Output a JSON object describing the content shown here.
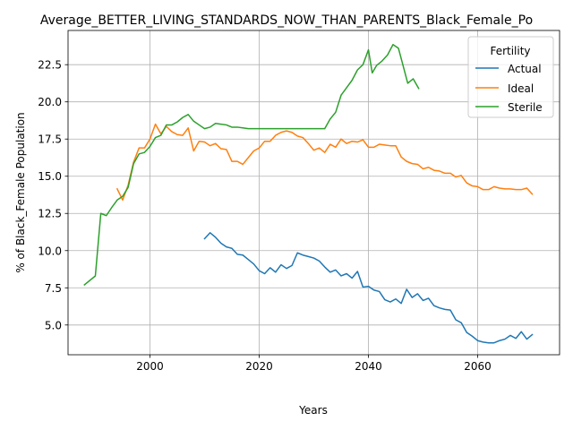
{
  "chart_data": {
    "type": "line",
    "title": "Average_BETTER_LIVING_STANDARDS_NOW_THAN_PARENTS_Black_Female_Po",
    "xlabel": "Years",
    "ylabel": "% of Black_Female Population",
    "xlim": [
      1985,
      2075
    ],
    "ylim": [
      3.0,
      24.8
    ],
    "x_ticks": [
      2000,
      2020,
      2040,
      2060
    ],
    "y_ticks": [
      5.0,
      7.5,
      10.0,
      12.5,
      15.0,
      17.5,
      20.0,
      22.5
    ],
    "grid": true,
    "legend": {
      "title": "Fertility",
      "placement": "top-right"
    },
    "series": [
      {
        "name": "Actual",
        "color": "#1f77b4",
        "points": [
          [
            2010,
            10.8
          ],
          [
            2011,
            11.2
          ],
          [
            2012,
            10.9
          ],
          [
            2013,
            10.5
          ],
          [
            2014,
            10.25
          ],
          [
            2015,
            10.15
          ],
          [
            2016,
            9.75
          ],
          [
            2017,
            9.7
          ],
          [
            2018,
            9.4
          ],
          [
            2019,
            9.1
          ],
          [
            2020,
            8.65
          ],
          [
            2021,
            8.45
          ],
          [
            2022,
            8.85
          ],
          [
            2023,
            8.55
          ],
          [
            2024,
            9.05
          ],
          [
            2025,
            8.8
          ],
          [
            2026,
            9.0
          ],
          [
            2027,
            9.85
          ],
          [
            2028,
            9.7
          ],
          [
            2029,
            9.6
          ],
          [
            2030,
            9.5
          ],
          [
            2031,
            9.3
          ],
          [
            2032,
            8.9
          ],
          [
            2033,
            8.55
          ],
          [
            2034,
            8.7
          ],
          [
            2035,
            8.3
          ],
          [
            2036,
            8.45
          ],
          [
            2037,
            8.15
          ],
          [
            2038,
            8.6
          ],
          [
            2039,
            7.55
          ],
          [
            2040,
            7.6
          ],
          [
            2041,
            7.35
          ],
          [
            2042,
            7.25
          ],
          [
            2043,
            6.7
          ],
          [
            2044,
            6.55
          ],
          [
            2045,
            6.75
          ],
          [
            2046,
            6.45
          ],
          [
            2047,
            7.4
          ],
          [
            2048,
            6.85
          ],
          [
            2049,
            7.1
          ],
          [
            2050,
            6.65
          ],
          [
            2051,
            6.8
          ],
          [
            2052,
            6.3
          ],
          [
            2053,
            6.15
          ],
          [
            2054,
            6.05
          ],
          [
            2055,
            6.0
          ],
          [
            2056,
            5.35
          ],
          [
            2057,
            5.15
          ],
          [
            2058,
            4.5
          ],
          [
            2059,
            4.25
          ],
          [
            2060,
            3.95
          ],
          [
            2061,
            3.85
          ],
          [
            2062,
            3.8
          ],
          [
            2063,
            3.8
          ],
          [
            2064,
            3.95
          ],
          [
            2065,
            4.05
          ],
          [
            2066,
            4.3
          ],
          [
            2067,
            4.1
          ],
          [
            2068,
            4.55
          ],
          [
            2069,
            4.05
          ],
          [
            2070,
            4.35
          ]
        ]
      },
      {
        "name": "Ideal",
        "color": "#ff7f0e",
        "points": [
          [
            1994,
            14.15
          ],
          [
            1995,
            13.4
          ],
          [
            1996,
            14.4
          ],
          [
            1997,
            15.95
          ],
          [
            1998,
            16.9
          ],
          [
            1999,
            16.9
          ],
          [
            2000,
            17.5
          ],
          [
            2001,
            18.5
          ],
          [
            2002,
            17.85
          ],
          [
            2003,
            18.35
          ],
          [
            2004,
            18.0
          ],
          [
            2005,
            17.8
          ],
          [
            2006,
            17.75
          ],
          [
            2007,
            18.25
          ],
          [
            2008,
            16.7
          ],
          [
            2009,
            17.35
          ],
          [
            2010,
            17.3
          ],
          [
            2011,
            17.05
          ],
          [
            2012,
            17.2
          ],
          [
            2013,
            16.85
          ],
          [
            2014,
            16.8
          ],
          [
            2015,
            16.0
          ],
          [
            2016,
            16.0
          ],
          [
            2017,
            15.8
          ],
          [
            2018,
            16.25
          ],
          [
            2019,
            16.7
          ],
          [
            2020,
            16.9
          ],
          [
            2021,
            17.35
          ],
          [
            2022,
            17.35
          ],
          [
            2023,
            17.75
          ],
          [
            2024,
            17.95
          ],
          [
            2025,
            18.05
          ],
          [
            2026,
            17.95
          ],
          [
            2027,
            17.7
          ],
          [
            2028,
            17.6
          ],
          [
            2029,
            17.2
          ],
          [
            2030,
            16.75
          ],
          [
            2031,
            16.9
          ],
          [
            2032,
            16.6
          ],
          [
            2033,
            17.15
          ],
          [
            2034,
            16.95
          ],
          [
            2035,
            17.5
          ],
          [
            2036,
            17.2
          ],
          [
            2037,
            17.35
          ],
          [
            2038,
            17.3
          ],
          [
            2039,
            17.45
          ],
          [
            2040,
            16.95
          ],
          [
            2041,
            16.95
          ],
          [
            2042,
            17.15
          ],
          [
            2043,
            17.1
          ],
          [
            2044,
            17.05
          ],
          [
            2045,
            17.05
          ],
          [
            2046,
            16.3
          ],
          [
            2047,
            16.0
          ],
          [
            2048,
            15.85
          ],
          [
            2049,
            15.8
          ],
          [
            2050,
            15.5
          ],
          [
            2051,
            15.6
          ],
          [
            2052,
            15.4
          ],
          [
            2053,
            15.35
          ],
          [
            2054,
            15.2
          ],
          [
            2055,
            15.2
          ],
          [
            2056,
            14.95
          ],
          [
            2057,
            15.05
          ],
          [
            2058,
            14.55
          ],
          [
            2059,
            14.35
          ],
          [
            2060,
            14.3
          ],
          [
            2061,
            14.1
          ],
          [
            2062,
            14.1
          ],
          [
            2063,
            14.3
          ],
          [
            2064,
            14.2
          ],
          [
            2065,
            14.15
          ],
          [
            2066,
            14.15
          ],
          [
            2067,
            14.1
          ],
          [
            2068,
            14.1
          ],
          [
            2069,
            14.2
          ],
          [
            2070,
            13.8
          ]
        ]
      },
      {
        "name": "Sterile",
        "color": "#2ca02c",
        "points": [
          [
            1988,
            7.7
          ],
          [
            1990,
            8.3
          ],
          [
            1991,
            12.5
          ],
          [
            1992,
            12.35
          ],
          [
            1993,
            12.9
          ],
          [
            1994,
            13.4
          ],
          [
            1995,
            13.65
          ],
          [
            1996,
            14.25
          ],
          [
            1997,
            15.85
          ],
          [
            1998,
            16.5
          ],
          [
            1999,
            16.6
          ],
          [
            2000,
            17.0
          ],
          [
            2001,
            17.6
          ],
          [
            2002,
            17.75
          ],
          [
            2003,
            18.45
          ],
          [
            2004,
            18.45
          ],
          [
            2005,
            18.65
          ],
          [
            2006,
            18.95
          ],
          [
            2007,
            19.15
          ],
          [
            2008,
            18.7
          ],
          [
            2009,
            18.45
          ],
          [
            2010,
            18.2
          ],
          [
            2011,
            18.3
          ],
          [
            2012,
            18.55
          ],
          [
            2013,
            18.5
          ],
          [
            2014,
            18.45
          ],
          [
            2015,
            18.3
          ],
          [
            2016,
            18.3
          ],
          [
            2017,
            18.25
          ],
          [
            2018,
            18.2
          ],
          [
            2019,
            18.2
          ],
          [
            2020,
            18.2
          ],
          [
            2021,
            18.2
          ],
          [
            2022,
            18.2
          ],
          [
            2023,
            18.2
          ],
          [
            2024,
            18.2
          ],
          [
            2025,
            18.2
          ],
          [
            2026,
            18.2
          ],
          [
            2027,
            18.2
          ],
          [
            2028,
            18.2
          ],
          [
            2029,
            18.2
          ],
          [
            2030,
            18.2
          ],
          [
            2031,
            18.2
          ],
          [
            2032,
            18.2
          ],
          [
            2033,
            18.85
          ],
          [
            2034,
            19.3
          ],
          [
            2035,
            20.45
          ],
          [
            2036,
            20.95
          ],
          [
            2037,
            21.45
          ],
          [
            2038,
            22.15
          ],
          [
            2039,
            22.5
          ],
          [
            2040,
            23.5
          ],
          [
            2040.7,
            21.95
          ],
          [
            2041.5,
            22.45
          ],
          [
            2042.5,
            22.75
          ],
          [
            2043.5,
            23.15
          ],
          [
            2044.5,
            23.85
          ],
          [
            2045.5,
            23.6
          ],
          [
            2046.3,
            22.5
          ],
          [
            2047.2,
            21.25
          ],
          [
            2048.2,
            21.55
          ],
          [
            2049.2,
            20.9
          ]
        ]
      }
    ]
  }
}
